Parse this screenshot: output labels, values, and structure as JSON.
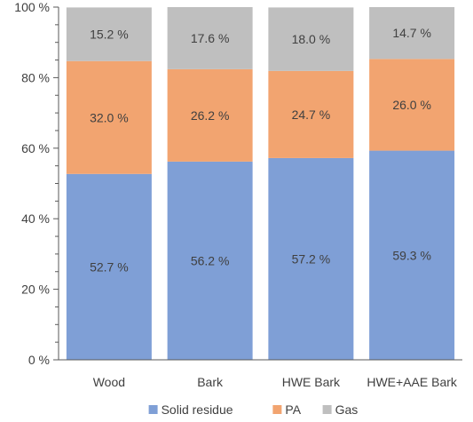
{
  "chart_data": {
    "type": "bar",
    "stacked": true,
    "categories": [
      "Wood",
      "Bark",
      "HWE Bark",
      "HWE+AAE Bark"
    ],
    "series": [
      {
        "name": "Solid residue",
        "color": "#7f9fd6",
        "values": [
          52.7,
          56.2,
          57.2,
          59.3
        ],
        "labels": [
          "52.7 %",
          "56.2 %",
          "57.2 %",
          "59.3 %"
        ]
      },
      {
        "name": "PA",
        "color": "#f2a470",
        "values": [
          32.0,
          26.2,
          24.7,
          26.0
        ],
        "labels": [
          "32.0 %",
          "26.2 %",
          "24.7 %",
          "26.0 %"
        ]
      },
      {
        "name": "Gas",
        "color": "#bfbfbf",
        "values": [
          15.2,
          17.6,
          18.0,
          14.7
        ],
        "labels": [
          "15.2 %",
          "17.6 %",
          "18.0 %",
          "14.7 %"
        ]
      }
    ],
    "ylim": [
      0,
      100
    ],
    "yticks": [
      0,
      20,
      40,
      60,
      80,
      100
    ],
    "ytick_labels": [
      "0 %",
      "20 %",
      "40 %",
      "60 %",
      "80 %",
      "100 %"
    ],
    "legend_position": "bottom",
    "grid": false
  }
}
